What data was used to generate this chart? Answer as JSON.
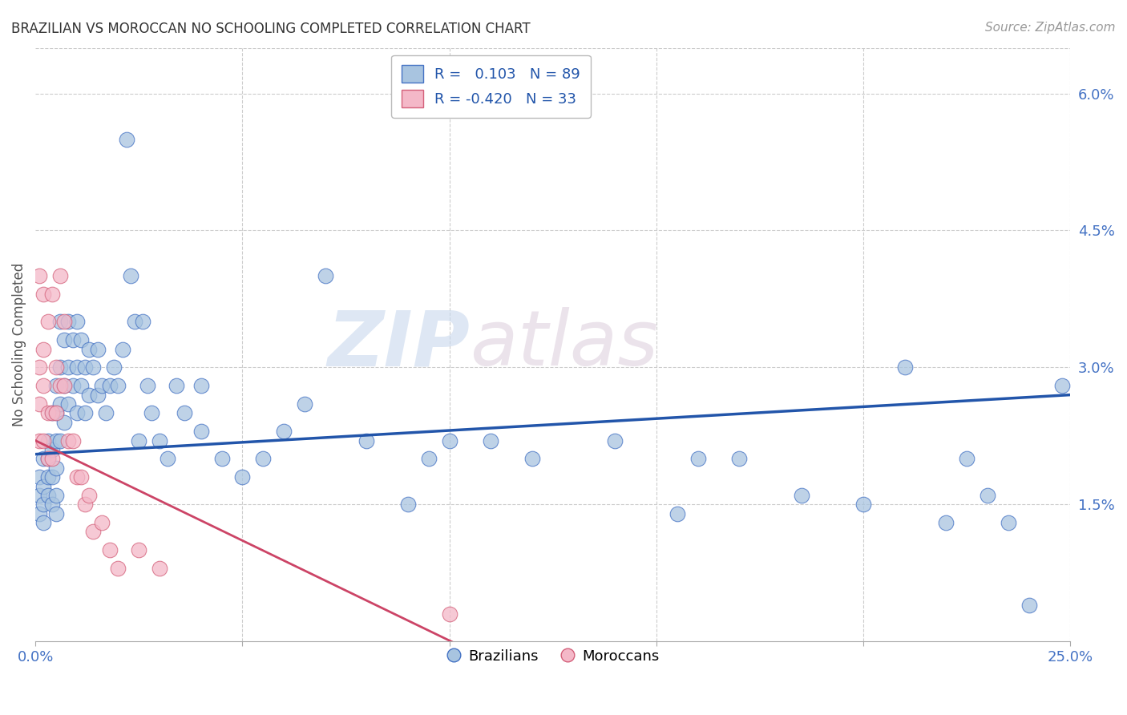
{
  "title": "BRAZILIAN VS MOROCCAN NO SCHOOLING COMPLETED CORRELATION CHART",
  "source": "Source: ZipAtlas.com",
  "ylabel": "No Schooling Completed",
  "xlim": [
    0.0,
    0.25
  ],
  "ylim": [
    0.0,
    0.065
  ],
  "right_yticks": [
    0.0,
    0.015,
    0.03,
    0.045,
    0.06
  ],
  "right_yticklabels": [
    "",
    "1.5%",
    "3.0%",
    "4.5%",
    "6.0%"
  ],
  "xticks": [
    0.0,
    0.05,
    0.1,
    0.15,
    0.2,
    0.25
  ],
  "xticklabels": [
    "0.0%",
    "",
    "",
    "",
    "",
    "25.0%"
  ],
  "watermark_zip": "ZIP",
  "watermark_atlas": "atlas",
  "legend_label_1": "R =   0.103   N = 89",
  "legend_label_2": "R = -0.420   N = 33",
  "brazil_color": "#a8c4e0",
  "brazil_edge_color": "#4472c4",
  "brazil_line_color": "#2255aa",
  "morocco_color": "#f4b8c8",
  "morocco_edge_color": "#d4607a",
  "morocco_line_color": "#cc4466",
  "background_color": "#ffffff",
  "grid_color": "#cccccc",
  "title_color": "#333333",
  "axis_label_color": "#555555",
  "tick_label_color": "#4472c4",
  "brazil_scatter_x": [
    0.001,
    0.001,
    0.001,
    0.002,
    0.002,
    0.002,
    0.002,
    0.003,
    0.003,
    0.003,
    0.003,
    0.004,
    0.004,
    0.004,
    0.004,
    0.005,
    0.005,
    0.005,
    0.005,
    0.005,
    0.005,
    0.006,
    0.006,
    0.006,
    0.006,
    0.007,
    0.007,
    0.007,
    0.008,
    0.008,
    0.008,
    0.009,
    0.009,
    0.01,
    0.01,
    0.01,
    0.011,
    0.011,
    0.012,
    0.012,
    0.013,
    0.013,
    0.014,
    0.015,
    0.015,
    0.016,
    0.017,
    0.018,
    0.019,
    0.02,
    0.021,
    0.022,
    0.023,
    0.024,
    0.025,
    0.026,
    0.027,
    0.028,
    0.03,
    0.032,
    0.034,
    0.036,
    0.04,
    0.04,
    0.045,
    0.05,
    0.055,
    0.06,
    0.065,
    0.07,
    0.08,
    0.09,
    0.095,
    0.1,
    0.11,
    0.12,
    0.14,
    0.155,
    0.16,
    0.17,
    0.185,
    0.2,
    0.21,
    0.22,
    0.225,
    0.23,
    0.235,
    0.24,
    0.248
  ],
  "brazil_scatter_y": [
    0.014,
    0.016,
    0.018,
    0.013,
    0.015,
    0.017,
    0.02,
    0.016,
    0.018,
    0.02,
    0.022,
    0.015,
    0.018,
    0.021,
    0.025,
    0.014,
    0.016,
    0.019,
    0.022,
    0.025,
    0.028,
    0.022,
    0.026,
    0.03,
    0.035,
    0.024,
    0.028,
    0.033,
    0.026,
    0.03,
    0.035,
    0.028,
    0.033,
    0.025,
    0.03,
    0.035,
    0.028,
    0.033,
    0.03,
    0.025,
    0.032,
    0.027,
    0.03,
    0.032,
    0.027,
    0.028,
    0.025,
    0.028,
    0.03,
    0.028,
    0.032,
    0.055,
    0.04,
    0.035,
    0.022,
    0.035,
    0.028,
    0.025,
    0.022,
    0.02,
    0.028,
    0.025,
    0.028,
    0.023,
    0.02,
    0.018,
    0.02,
    0.023,
    0.026,
    0.04,
    0.022,
    0.015,
    0.02,
    0.022,
    0.022,
    0.02,
    0.022,
    0.014,
    0.02,
    0.02,
    0.016,
    0.015,
    0.03,
    0.013,
    0.02,
    0.016,
    0.013,
    0.004,
    0.028
  ],
  "morocco_scatter_x": [
    0.001,
    0.001,
    0.001,
    0.001,
    0.002,
    0.002,
    0.002,
    0.002,
    0.003,
    0.003,
    0.003,
    0.004,
    0.004,
    0.004,
    0.005,
    0.005,
    0.006,
    0.006,
    0.007,
    0.007,
    0.008,
    0.009,
    0.01,
    0.011,
    0.012,
    0.013,
    0.014,
    0.016,
    0.018,
    0.02,
    0.025,
    0.03,
    0.1
  ],
  "morocco_scatter_y": [
    0.022,
    0.026,
    0.03,
    0.04,
    0.022,
    0.028,
    0.032,
    0.038,
    0.02,
    0.025,
    0.035,
    0.02,
    0.025,
    0.038,
    0.025,
    0.03,
    0.028,
    0.04,
    0.028,
    0.035,
    0.022,
    0.022,
    0.018,
    0.018,
    0.015,
    0.016,
    0.012,
    0.013,
    0.01,
    0.008,
    0.01,
    0.008,
    0.003
  ],
  "brazil_trend_x0": 0.0,
  "brazil_trend_x1": 0.25,
  "brazil_trend_y0": 0.0205,
  "brazil_trend_y1": 0.027,
  "morocco_trend_x0": 0.0,
  "morocco_trend_x1": 0.105,
  "morocco_trend_y0": 0.022,
  "morocco_trend_y1": -0.001
}
